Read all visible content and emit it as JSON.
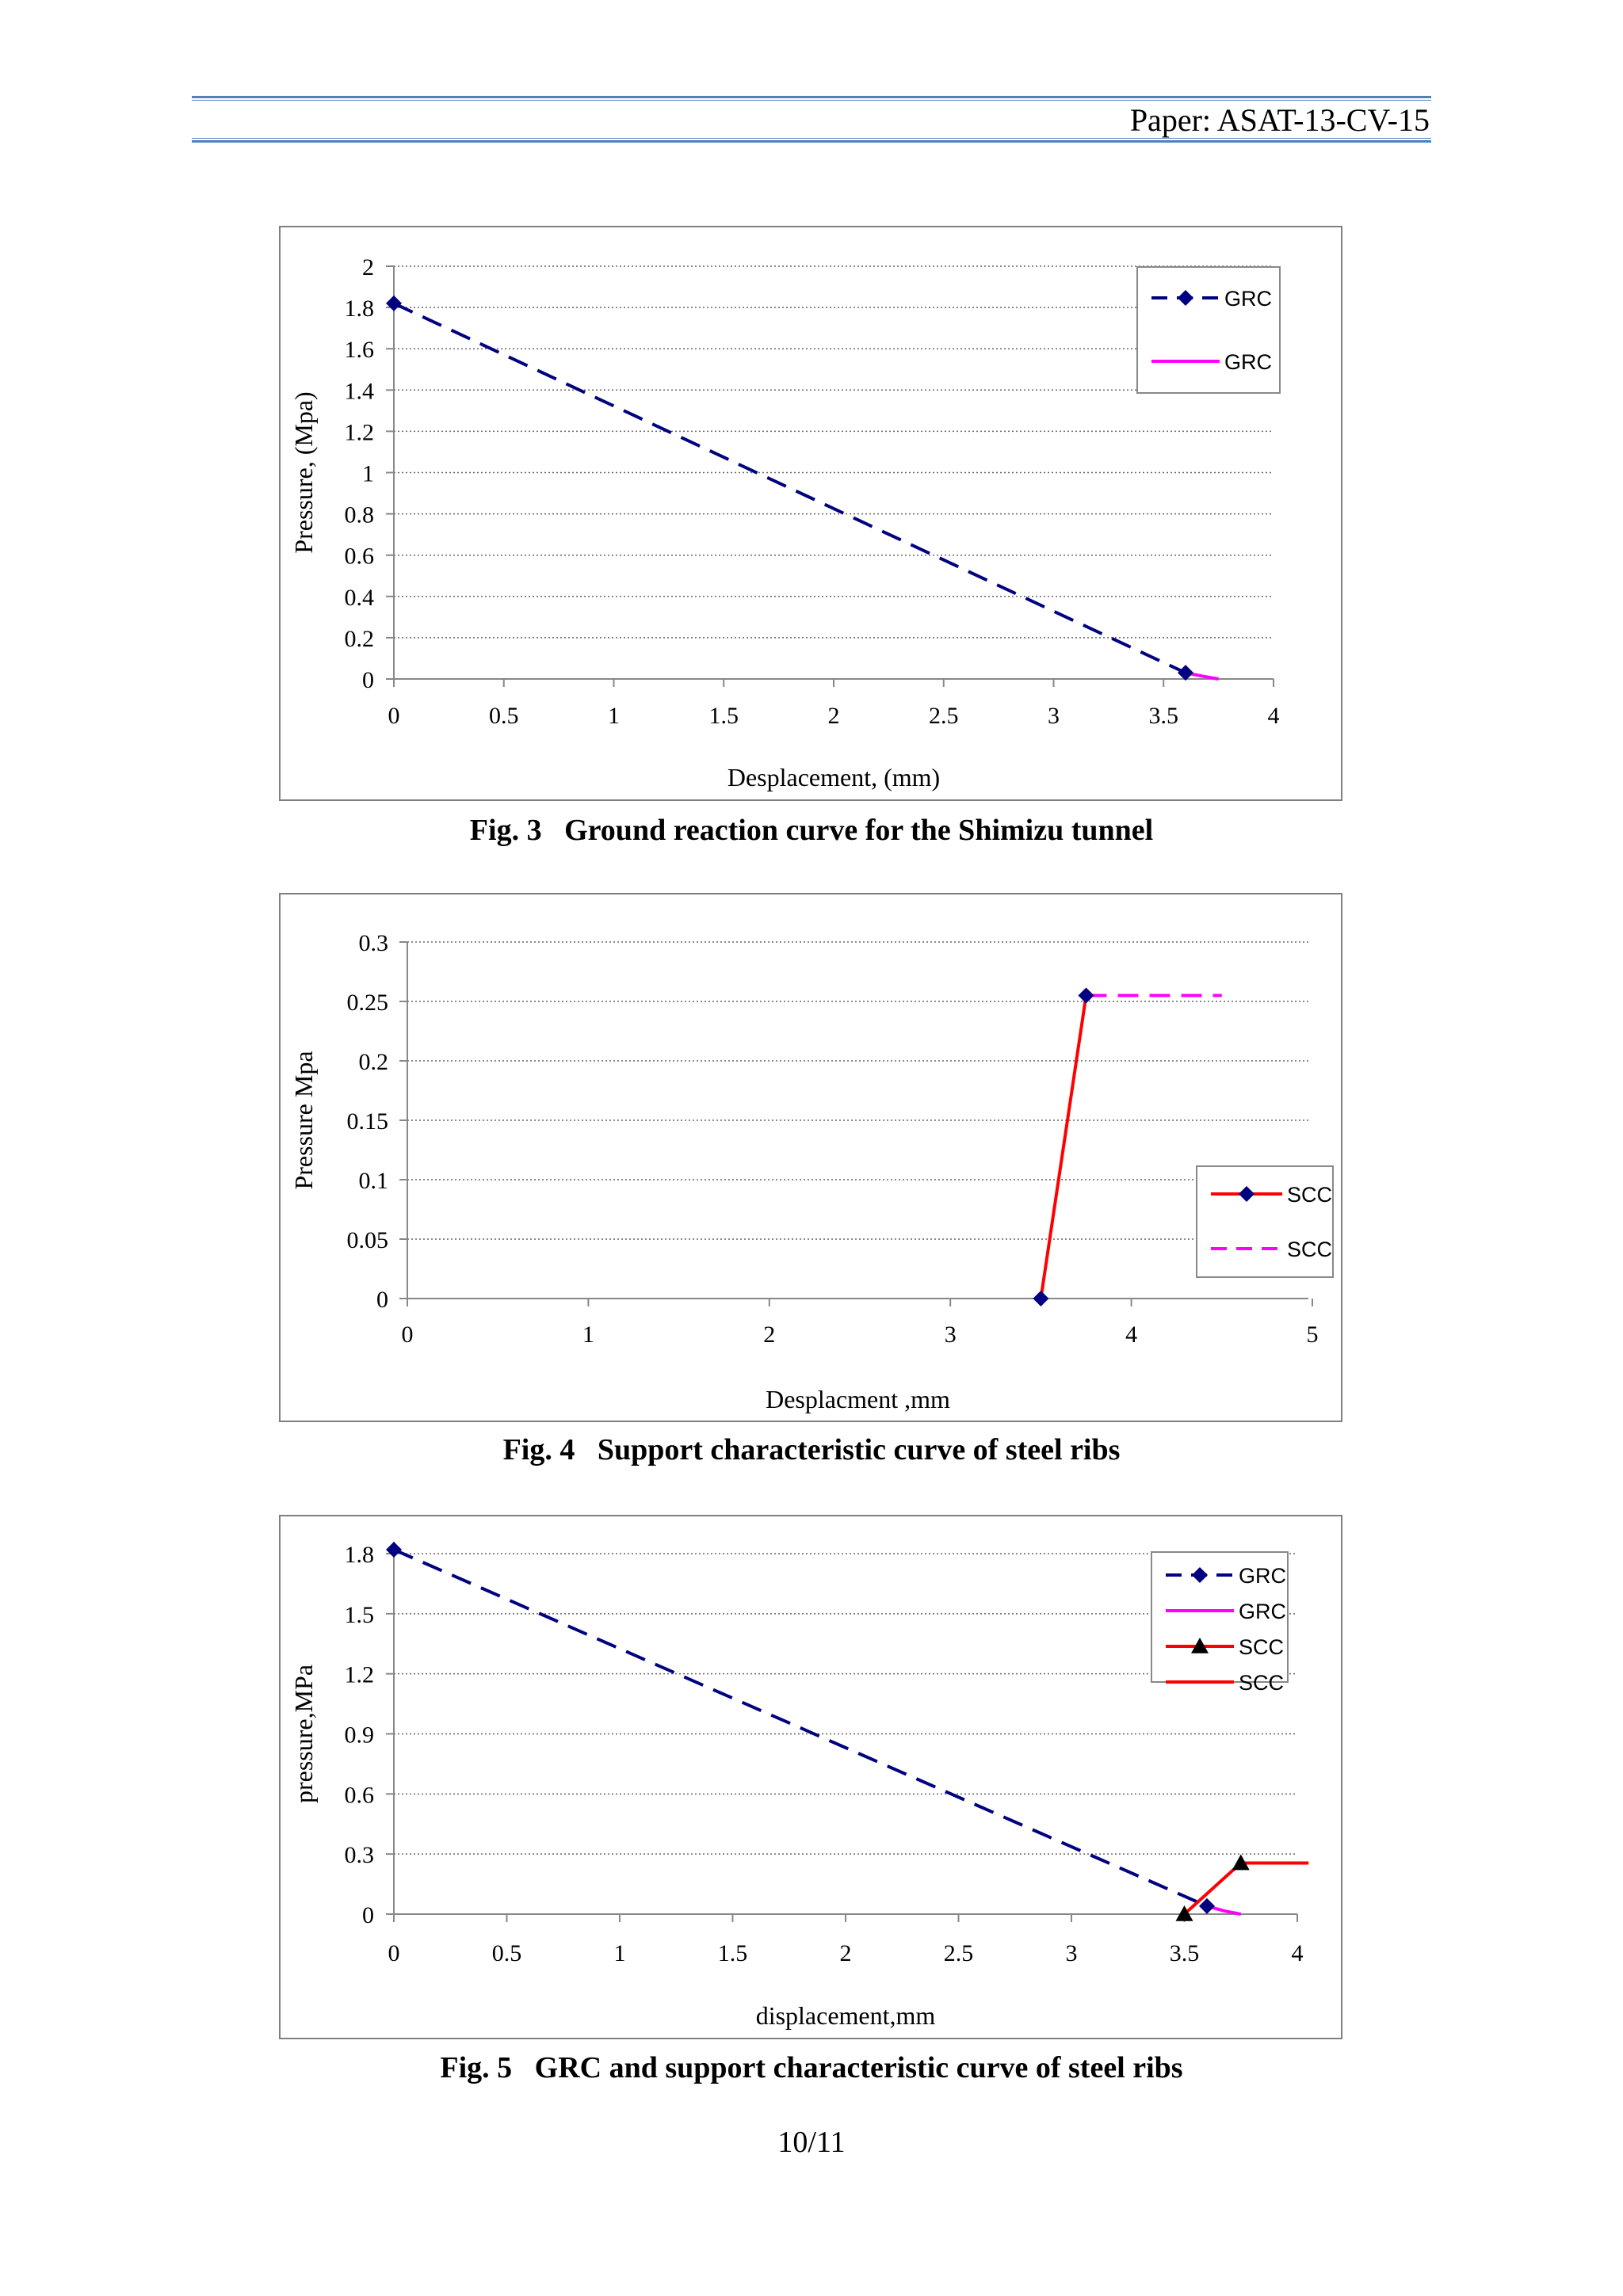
{
  "header": {
    "paper_id": "Paper: ASAT-13-CV-15"
  },
  "figures": [
    {
      "caption": "Fig. 3   Ground reaction curve for the Shimizu tunnel"
    },
    {
      "caption": "Fig. 4   Support characteristic curve of steel ribs"
    },
    {
      "caption": "Fig. 5   GRC and support characteristic curve of steel ribs"
    }
  ],
  "footer": {
    "page": "10/11"
  },
  "colors": {
    "navy": "#000080",
    "magenta": "#ff00ff",
    "red": "#ff0000",
    "black": "#000000",
    "header_rule": "#4f81bd"
  },
  "chart_data": [
    {
      "type": "line",
      "xlabel": "Desplacement, (mm)",
      "ylabel": "Pressure, (Mpa)",
      "xlim": [
        0,
        4
      ],
      "ylim": [
        0,
        2
      ],
      "xticks": [
        0,
        0.5,
        1,
        1.5,
        2,
        2.5,
        3,
        3.5,
        4
      ],
      "xtick_labels": [
        "0",
        "0.5",
        "1",
        "1.5",
        "2",
        "2.5",
        "3",
        "3.5",
        "4"
      ],
      "yticks": [
        0,
        0.2,
        0.4,
        0.6,
        0.8,
        1,
        1.2,
        1.4,
        1.6,
        1.8,
        2
      ],
      "ytick_labels": [
        "0",
        "0.2",
        "0.4",
        "0.6",
        "0.8",
        "1",
        "1.2",
        "1.4",
        "1.6",
        "1.8",
        "2"
      ],
      "grid": "horizontal dotted",
      "legend_position": "top-right",
      "series": [
        {
          "name": "GRC",
          "color": "#000080",
          "style": "dashed",
          "marker": "diamond",
          "x": [
            0,
            3.6
          ],
          "y": [
            1.82,
            0.03
          ]
        },
        {
          "name": "GRC",
          "color": "#ff00ff",
          "style": "solid",
          "marker": "none",
          "x": [
            3.6,
            3.68,
            3.75
          ],
          "y": [
            0.03,
            0.013,
            0
          ]
        }
      ]
    },
    {
      "type": "line",
      "xlabel": "Desplacment ,mm",
      "ylabel": "Pressure Mpa",
      "xlim": [
        0,
        5
      ],
      "ylim": [
        0,
        0.3
      ],
      "xticks": [
        0,
        1,
        2,
        3,
        4,
        5
      ],
      "xtick_labels": [
        "0",
        "1",
        "2",
        "3",
        "4",
        "5"
      ],
      "yticks": [
        0,
        0.05,
        0.1,
        0.15,
        0.2,
        0.25,
        0.3
      ],
      "ytick_labels": [
        "0",
        "0.05",
        "0.1",
        "0.15",
        "0.2",
        "0.25",
        "0.3"
      ],
      "grid": "horizontal dotted",
      "legend_position": "right",
      "series": [
        {
          "name": "SCC",
          "color": "#ff0000",
          "style": "solid",
          "marker": "diamond",
          "marker_color": "#000080",
          "x": [
            3.5,
            3.75
          ],
          "y": [
            0,
            0.255
          ]
        },
        {
          "name": "SCC",
          "color": "#ff00ff",
          "style": "dashed",
          "marker": "none",
          "x": [
            3.75,
            4.5
          ],
          "y": [
            0.255,
            0.255
          ]
        }
      ]
    },
    {
      "type": "line",
      "xlabel": "displacement,mm",
      "ylabel": "pressure,MPa",
      "xlim": [
        0,
        4
      ],
      "ylim": [
        0,
        2
      ],
      "xticks": [
        0,
        0.5,
        1,
        1.5,
        2,
        2.5,
        3,
        3.5,
        4
      ],
      "xtick_labels": [
        "0",
        "0.5",
        "1",
        "1.5",
        "2",
        "2.5",
        "3",
        "3.5",
        "4"
      ],
      "yticks": [
        0,
        0.3,
        0.6,
        0.9,
        1.2,
        1.5,
        1.8
      ],
      "ytick_labels": [
        "0",
        "0.3",
        "0.6",
        "0.9",
        "1.2",
        "1.5",
        "1.8"
      ],
      "grid": "horizontal dotted",
      "legend_position": "top-right",
      "series": [
        {
          "name": "GRC",
          "color": "#000080",
          "style": "dashed",
          "marker": "diamond",
          "x": [
            0,
            3.6
          ],
          "y": [
            1.82,
            0.04
          ]
        },
        {
          "name": "GRC",
          "color": "#ff00ff",
          "style": "solid",
          "marker": "none",
          "x": [
            3.6,
            3.68,
            3.75
          ],
          "y": [
            0.04,
            0.015,
            0
          ]
        },
        {
          "name": "SCC",
          "color": "#ff0000",
          "style": "solid",
          "marker": "triangle",
          "marker_color": "#000000",
          "x": [
            3.5,
            3.75
          ],
          "y": [
            0,
            0.255
          ]
        },
        {
          "name": "SCC",
          "color": "#ff0000",
          "style": "solid",
          "marker": "none",
          "x": [
            3.75,
            4.05
          ],
          "y": [
            0.255,
            0.255
          ]
        }
      ]
    }
  ]
}
